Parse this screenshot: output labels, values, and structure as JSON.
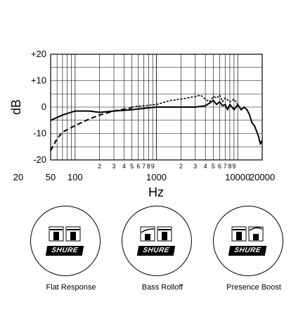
{
  "chart_data": {
    "type": "line",
    "xscale": "log",
    "xlim": [
      50,
      20000
    ],
    "ylim": [
      -20,
      20
    ],
    "ylabel": "dB",
    "xlabel": "Hz",
    "grid": true,
    "y_ticks": [
      "+20",
      "+10",
      "0",
      "-10",
      "-20"
    ],
    "x_ticks_major": [
      {
        "label": "20",
        "value": 20
      },
      {
        "label": "50",
        "value": 50
      },
      {
        "label": "100",
        "value": 100
      },
      {
        "label": "1000",
        "value": 1000
      },
      {
        "label": "10000",
        "value": 10000
      },
      {
        "label": "20000",
        "value": 20000
      }
    ],
    "x_ticks_minor": [
      {
        "label": "2",
        "value": 200
      },
      {
        "label": "3",
        "value": 300
      },
      {
        "label": "4",
        "value": 400
      },
      {
        "label": "5",
        "value": 500
      },
      {
        "label": "6",
        "value": 600
      },
      {
        "label": "7",
        "value": 700
      },
      {
        "label": "8",
        "value": 800
      },
      {
        "label": "9",
        "value": 900
      },
      {
        "label": "2",
        "value": 2000
      },
      {
        "label": "3",
        "value": 3000
      },
      {
        "label": "4",
        "value": 4000
      },
      {
        "label": "5",
        "value": 5000
      },
      {
        "label": "6",
        "value": 6000
      },
      {
        "label": "7",
        "value": 7000
      },
      {
        "label": "8",
        "value": 8000
      },
      {
        "label": "9",
        "value": 9000
      }
    ],
    "series": [
      {
        "style": "solid",
        "x": [
          50,
          70,
          100,
          150,
          200,
          300,
          500,
          700,
          1000,
          1500,
          2000,
          3000,
          4000,
          4500,
          5000,
          5500,
          6000,
          6500,
          7000,
          7500,
          8000,
          9000,
          10000,
          11000,
          12000,
          13000,
          14000,
          15000,
          16000,
          17000,
          18000,
          19000,
          20000
        ],
        "y": [
          -5,
          -3,
          -1.5,
          -1.5,
          -2,
          -1.5,
          -1,
          -0.5,
          0,
          0,
          0,
          0,
          0.5,
          1.5,
          2.5,
          1,
          2,
          0.5,
          1,
          -1,
          1,
          -1,
          1,
          -1,
          0,
          -1,
          -3,
          -6,
          -7,
          -9,
          -11,
          -14,
          -12.5
        ]
      },
      {
        "style": "dashed",
        "x": [
          50,
          60,
          70,
          100,
          150,
          200,
          300,
          400,
          500
        ],
        "y": [
          -16.5,
          -12,
          -9.5,
          -7,
          -4.5,
          -3,
          -1.5,
          -0.8,
          -0.3
        ]
      },
      {
        "style": "dotted",
        "x": [
          500,
          700,
          1000,
          1500,
          2000,
          3000,
          3500,
          4000,
          4500,
          5000,
          5500,
          6000,
          6500,
          7000,
          8000,
          9000,
          10000
        ],
        "y": [
          0,
          0.5,
          1,
          2.5,
          3,
          4,
          4.5,
          3,
          2,
          4,
          3.5,
          4.5,
          2,
          3.5,
          2,
          3,
          1
        ]
      }
    ]
  },
  "switches": [
    {
      "label": "Flat Response",
      "logo": "SHURE",
      "glyph": "flat"
    },
    {
      "label": "Bass Rolloff",
      "logo": "SHURE",
      "glyph": "rolloff"
    },
    {
      "label": "Presence Boost",
      "logo": "SHURE",
      "glyph": "presence"
    }
  ]
}
